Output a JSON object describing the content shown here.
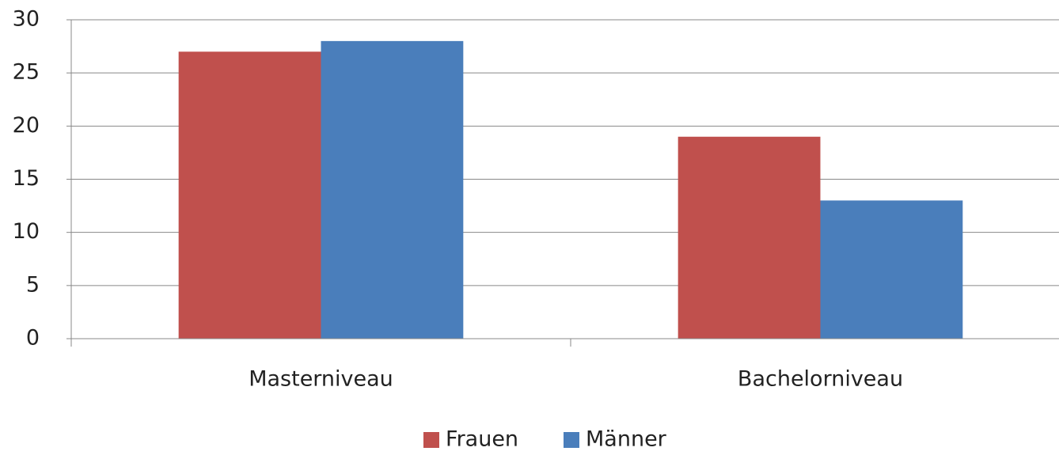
{
  "chart_data": {
    "type": "bar",
    "categories": [
      "Masterniveau",
      "Bachelorniveau"
    ],
    "series": [
      {
        "name": "Frauen",
        "color": "#c0504d",
        "values": [
          27,
          19
        ]
      },
      {
        "name": "Männer",
        "color": "#4a7ebb",
        "values": [
          28,
          13
        ]
      }
    ],
    "ylim": [
      0,
      30
    ],
    "yticks": [
      0,
      5,
      10,
      15,
      20,
      25,
      30
    ],
    "grid": true,
    "legend": "bottom"
  }
}
